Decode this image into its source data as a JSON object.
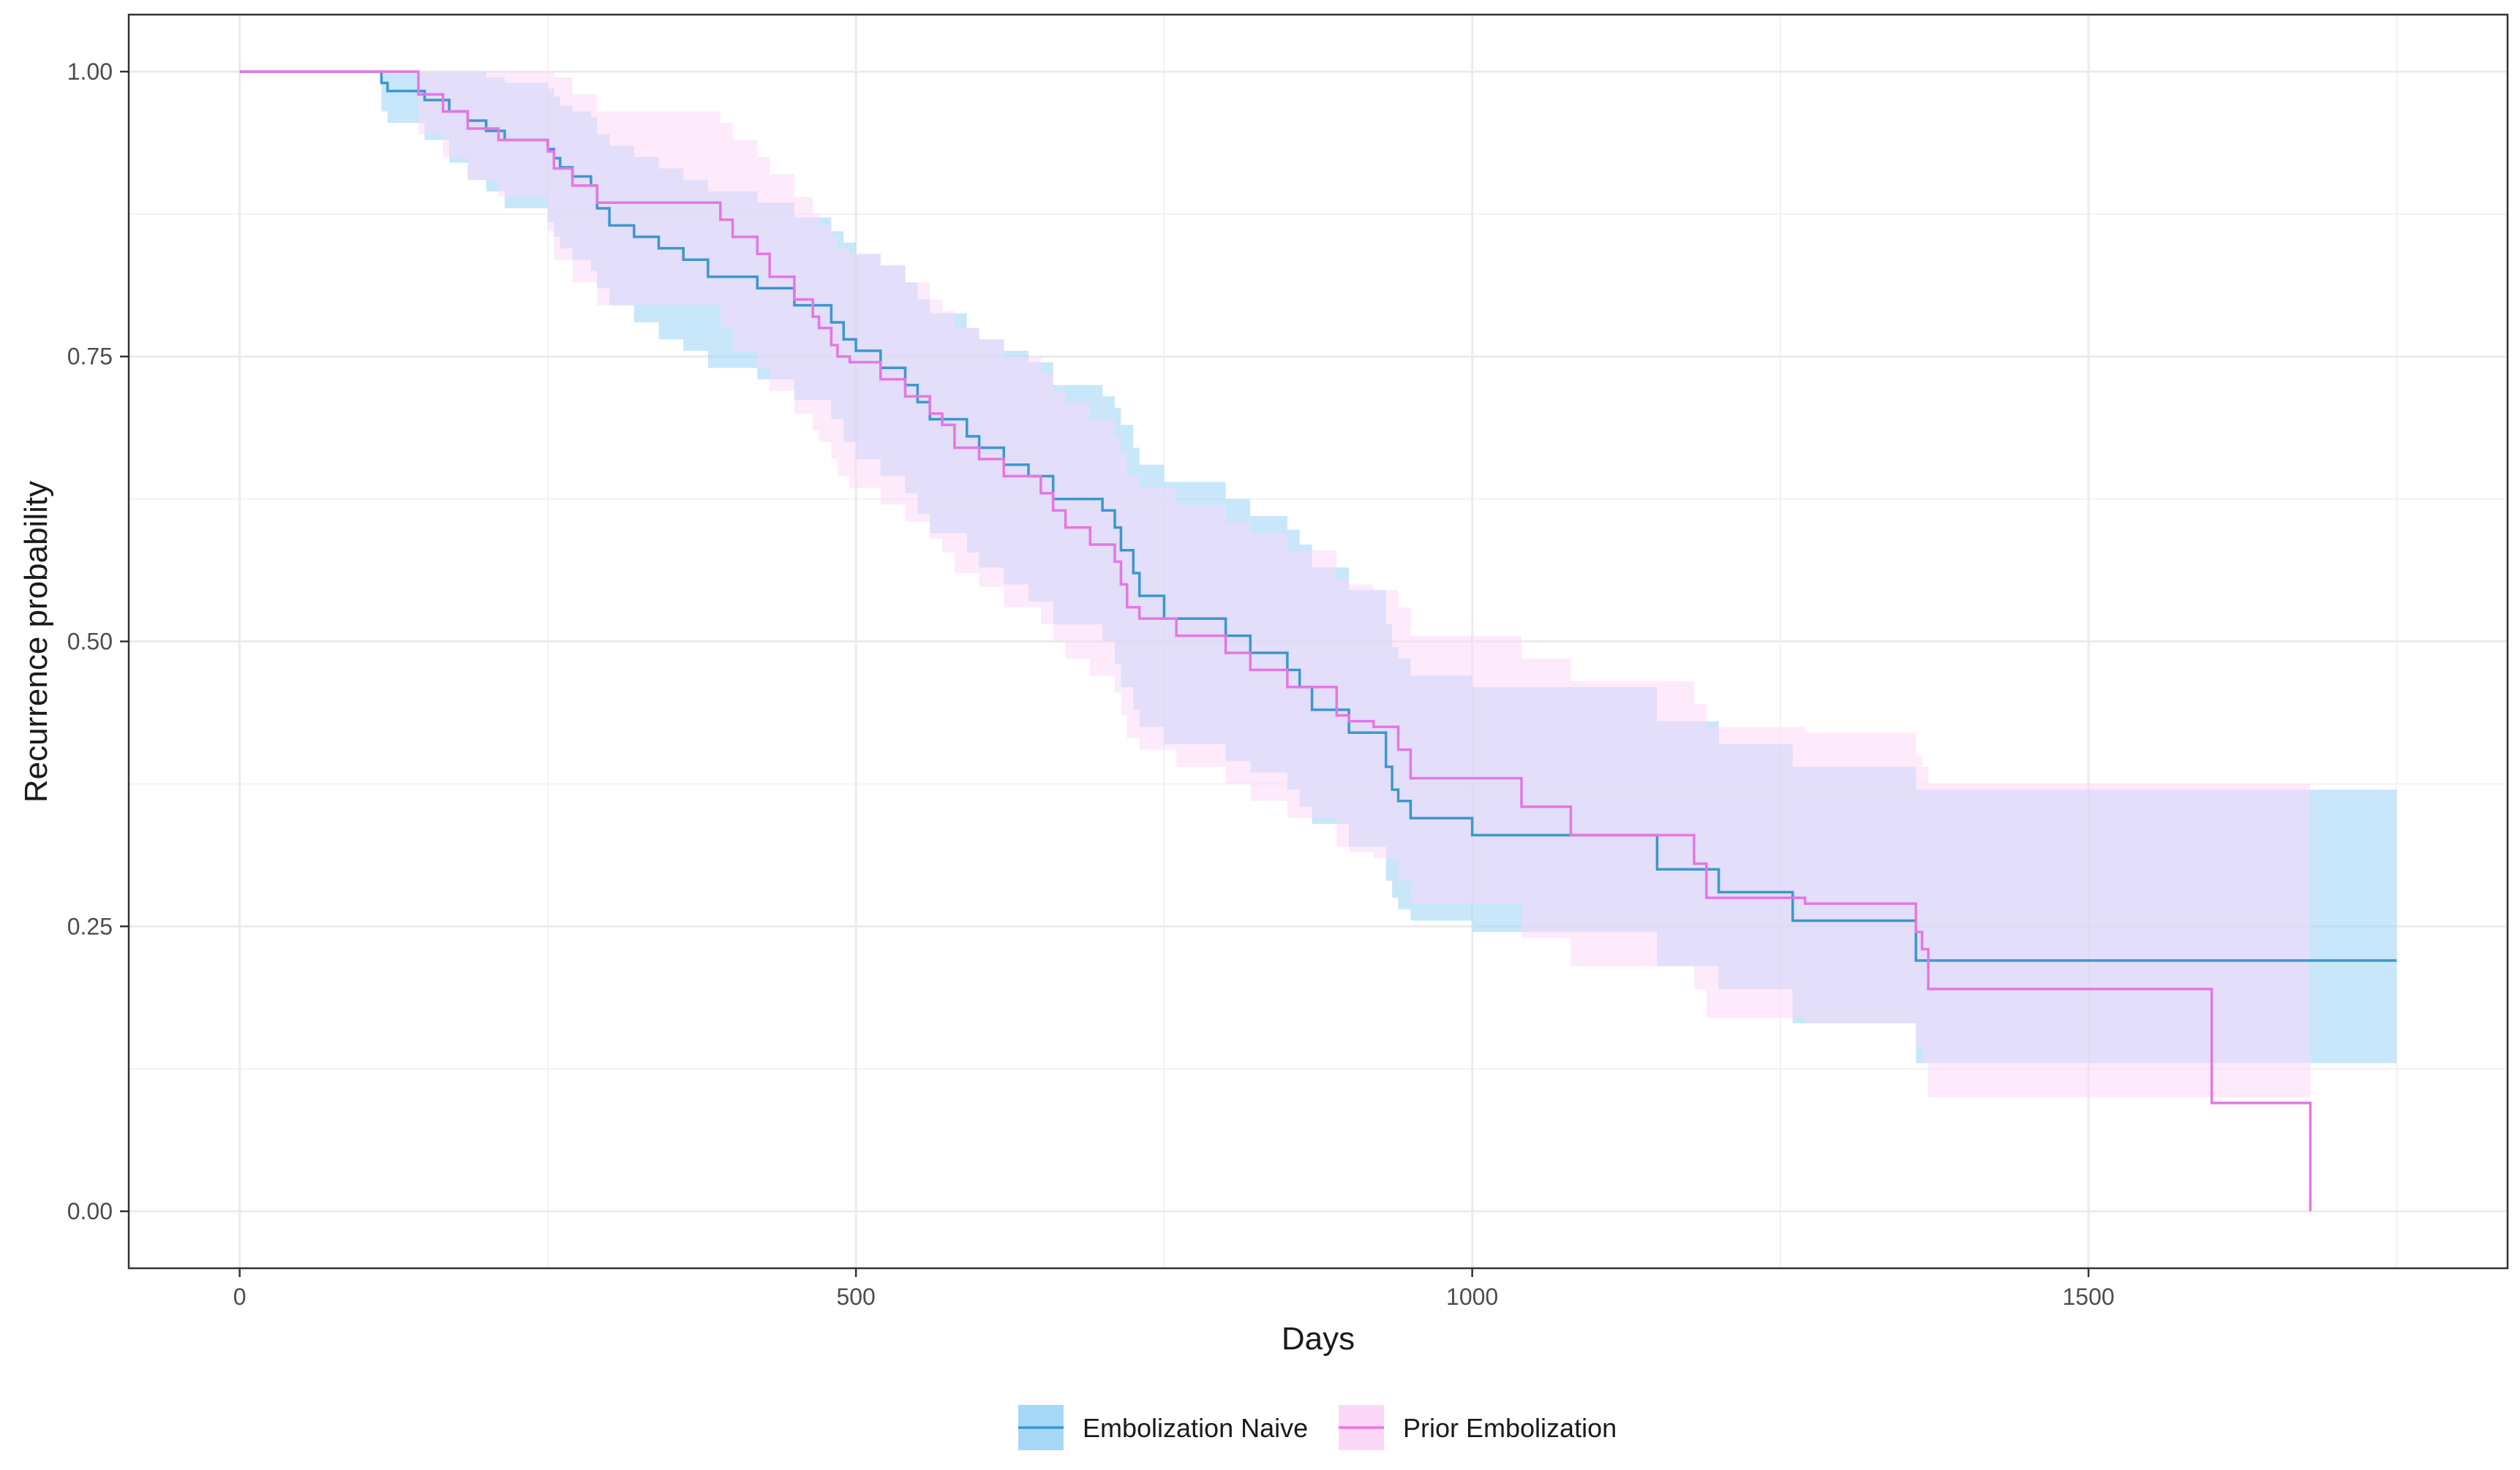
{
  "chart_data": {
    "type": "line",
    "subtype": "kaplan-meier step curve with confidence bands",
    "title": "",
    "xlabel": "Days",
    "ylabel": "Recurrence probability",
    "xlim": [
      -90,
      1840
    ],
    "ylim": [
      -0.05,
      1.05
    ],
    "x_ticks": [
      0,
      500,
      1000,
      1500
    ],
    "x_tick_labels": [
      "0",
      "500",
      "1000",
      "1500"
    ],
    "y_ticks": [
      0.0,
      0.25,
      0.5,
      0.75,
      1.0
    ],
    "y_tick_labels": [
      "0.00",
      "0.25",
      "0.50",
      "0.75",
      "1.00"
    ],
    "grid": true,
    "legend_position": "bottom",
    "series": [
      {
        "name": "Embolization Naive",
        "line_color": "#3b97cf",
        "fill_color": "#a7d8f7",
        "x": [
          0,
          115,
          120,
          150,
          170,
          185,
          200,
          215,
          250,
          255,
          260,
          270,
          285,
          290,
          300,
          320,
          340,
          360,
          380,
          420,
          450,
          480,
          490,
          500,
          520,
          540,
          550,
          560,
          590,
          600,
          620,
          640,
          660,
          700,
          710,
          715,
          725,
          730,
          750,
          800,
          820,
          850,
          860,
          870,
          900,
          930,
          935,
          940,
          950,
          1000,
          1150,
          1200,
          1260,
          1360,
          1750
        ],
        "surv": [
          1.0,
          0.99,
          0.983,
          0.975,
          0.965,
          0.957,
          0.948,
          0.94,
          0.932,
          0.924,
          0.916,
          0.908,
          0.9,
          0.88,
          0.865,
          0.855,
          0.845,
          0.835,
          0.82,
          0.81,
          0.795,
          0.78,
          0.765,
          0.755,
          0.74,
          0.725,
          0.71,
          0.695,
          0.68,
          0.67,
          0.655,
          0.645,
          0.625,
          0.615,
          0.6,
          0.58,
          0.56,
          0.54,
          0.52,
          0.505,
          0.49,
          0.475,
          0.46,
          0.44,
          0.42,
          0.39,
          0.37,
          0.36,
          0.345,
          0.33,
          0.3,
          0.28,
          0.255,
          0.22,
          0.22
        ],
        "lower": [
          1.0,
          0.965,
          0.955,
          0.94,
          0.92,
          0.905,
          0.895,
          0.88,
          0.868,
          0.855,
          0.845,
          0.835,
          0.825,
          0.81,
          0.795,
          0.78,
          0.765,
          0.755,
          0.74,
          0.73,
          0.712,
          0.695,
          0.675,
          0.66,
          0.645,
          0.63,
          0.612,
          0.595,
          0.578,
          0.565,
          0.55,
          0.535,
          0.515,
          0.5,
          0.48,
          0.46,
          0.44,
          0.425,
          0.41,
          0.395,
          0.385,
          0.37,
          0.355,
          0.34,
          0.32,
          0.29,
          0.275,
          0.265,
          0.255,
          0.245,
          0.215,
          0.195,
          0.165,
          0.13,
          0.13
        ],
        "upper": [
          1.0,
          1.0,
          1.0,
          1.0,
          1.0,
          1.0,
          0.995,
          0.99,
          0.985,
          0.978,
          0.97,
          0.965,
          0.96,
          0.945,
          0.935,
          0.925,
          0.915,
          0.905,
          0.895,
          0.885,
          0.872,
          0.86,
          0.85,
          0.84,
          0.83,
          0.815,
          0.8,
          0.788,
          0.775,
          0.765,
          0.755,
          0.745,
          0.725,
          0.715,
          0.705,
          0.69,
          0.67,
          0.655,
          0.64,
          0.625,
          0.61,
          0.598,
          0.585,
          0.565,
          0.545,
          0.515,
          0.495,
          0.485,
          0.47,
          0.46,
          0.43,
          0.41,
          0.39,
          0.37,
          0.375
        ]
      },
      {
        "name": "Prior Embolization",
        "line_color": "#e377e3",
        "fill_color": "#fcd7f7",
        "x": [
          0,
          145,
          165,
          185,
          210,
          250,
          255,
          270,
          290,
          390,
          400,
          420,
          430,
          450,
          465,
          470,
          480,
          485,
          495,
          520,
          540,
          560,
          570,
          580,
          600,
          620,
          650,
          660,
          670,
          690,
          710,
          715,
          720,
          730,
          760,
          800,
          820,
          850,
          890,
          900,
          920,
          940,
          950,
          1040,
          1080,
          1180,
          1190,
          1270,
          1360,
          1365,
          1370,
          1600,
          1680
        ],
        "surv": [
          1.0,
          0.98,
          0.965,
          0.95,
          0.94,
          0.93,
          0.915,
          0.9,
          0.885,
          0.87,
          0.855,
          0.84,
          0.82,
          0.8,
          0.785,
          0.775,
          0.76,
          0.75,
          0.745,
          0.73,
          0.715,
          0.7,
          0.69,
          0.67,
          0.66,
          0.645,
          0.63,
          0.615,
          0.6,
          0.585,
          0.57,
          0.55,
          0.53,
          0.52,
          0.505,
          0.49,
          0.475,
          0.46,
          0.435,
          0.43,
          0.425,
          0.405,
          0.38,
          0.355,
          0.33,
          0.305,
          0.275,
          0.27,
          0.245,
          0.23,
          0.195,
          0.095,
          0.0
        ],
        "lower": [
          1.0,
          0.945,
          0.925,
          0.905,
          0.89,
          0.86,
          0.835,
          0.815,
          0.795,
          0.775,
          0.755,
          0.74,
          0.72,
          0.7,
          0.685,
          0.675,
          0.66,
          0.645,
          0.635,
          0.62,
          0.605,
          0.59,
          0.578,
          0.56,
          0.548,
          0.53,
          0.515,
          0.5,
          0.485,
          0.47,
          0.455,
          0.435,
          0.415,
          0.405,
          0.39,
          0.375,
          0.36,
          0.345,
          0.32,
          0.315,
          0.31,
          0.29,
          0.27,
          0.24,
          0.215,
          0.195,
          0.17,
          0.165,
          0.145,
          0.13,
          0.1,
          0.1,
          0.1
        ],
        "upper": [
          1.0,
          1.0,
          1.0,
          1.0,
          1.0,
          1.0,
          0.995,
          0.98,
          0.965,
          0.955,
          0.94,
          0.925,
          0.91,
          0.89,
          0.875,
          0.865,
          0.855,
          0.845,
          0.84,
          0.83,
          0.815,
          0.8,
          0.79,
          0.775,
          0.765,
          0.75,
          0.735,
          0.72,
          0.71,
          0.695,
          0.68,
          0.665,
          0.645,
          0.635,
          0.62,
          0.605,
          0.595,
          0.58,
          0.555,
          0.55,
          0.545,
          0.53,
          0.505,
          0.485,
          0.465,
          0.445,
          0.425,
          0.42,
          0.4,
          0.39,
          0.375,
          0.375,
          0.375
        ]
      }
    ]
  }
}
